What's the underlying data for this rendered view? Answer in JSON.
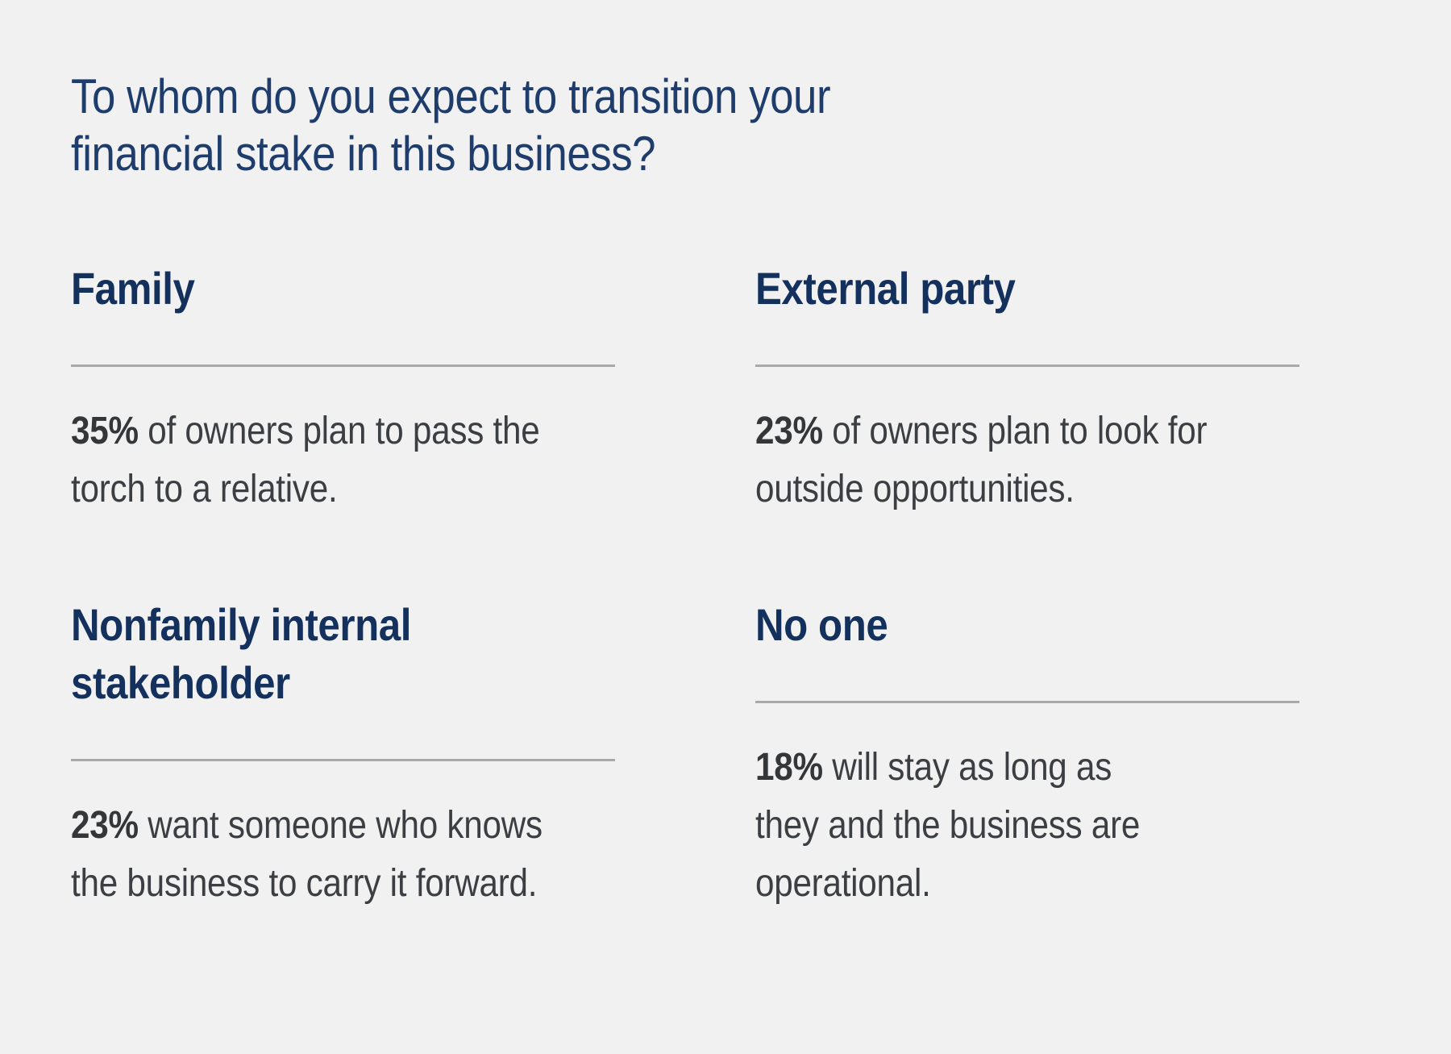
{
  "page": {
    "title_lines": [
      "To whom do you expect to transition your",
      "financial stake in this business?"
    ],
    "colors": {
      "background": "#f1f1f1",
      "title": "#1e3c6c",
      "heading": "#14315e",
      "body": "#3b3f43",
      "stat": "#33373a",
      "divider": "#a7a9aa"
    }
  },
  "sections": [
    {
      "heading": "Family",
      "stat": "35%",
      "text": " of owners plan to pass the\ntorch to a relative."
    },
    {
      "heading": "External party",
      "stat": "23%",
      "text": " of owners plan to look for\noutside opportunities."
    },
    {
      "heading": "Nonfamily internal\nstakeholder",
      "stat": "23%",
      "text": " want someone who knows\nthe business to carry it forward."
    },
    {
      "heading": "No one",
      "stat": "18%",
      "text": " will stay as long as\nthey and the business are\noperational."
    }
  ]
}
